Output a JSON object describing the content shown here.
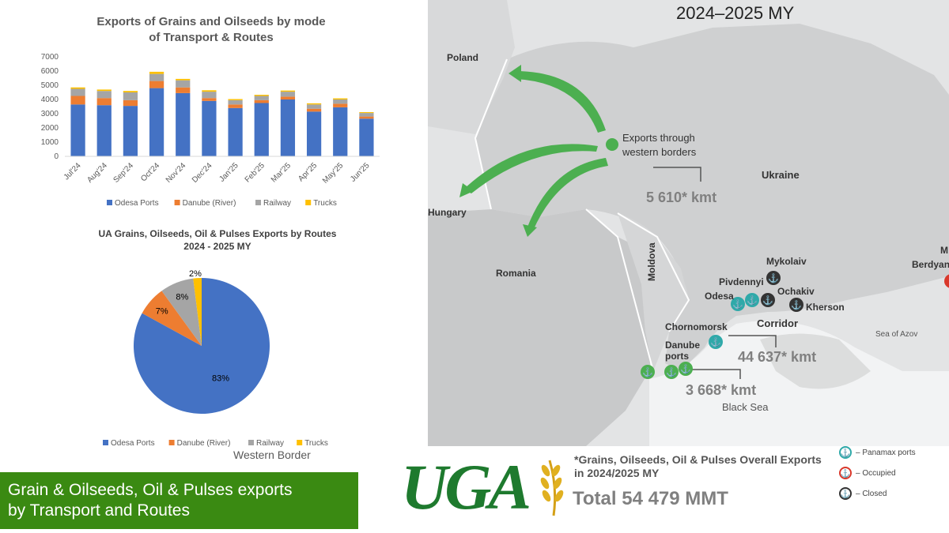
{
  "chart_data": [
    {
      "type": "bar",
      "stacked": true,
      "title": "Exports of Grains and Oilseeds by mode of Transport & Routes",
      "categories": [
        "Jul'24",
        "Aug'24",
        "Sep'24",
        "Oct'24",
        "Nov'24",
        "Dec'24",
        "Jan'25",
        "Feb'25",
        "Mar'25",
        "Apr'25",
        "May'25",
        "Jun'25"
      ],
      "series": [
        {
          "name": "Odesa Ports",
          "color": "#4472c4",
          "values": [
            3650,
            3600,
            3550,
            4800,
            4450,
            3900,
            3400,
            3750,
            4000,
            3150,
            3450,
            2650
          ]
        },
        {
          "name": "Danube (River)",
          "color": "#ed7d31",
          "values": [
            600,
            500,
            400,
            500,
            400,
            200,
            250,
            200,
            200,
            200,
            250,
            150
          ]
        },
        {
          "name": "Railway",
          "color": "#a5a5a5",
          "values": [
            500,
            500,
            550,
            500,
            500,
            450,
            300,
            300,
            350,
            300,
            300,
            250
          ]
        },
        {
          "name": "Trucks",
          "color": "#ffc000",
          "values": [
            100,
            100,
            100,
            150,
            100,
            100,
            80,
            80,
            80,
            80,
            80,
            60
          ]
        }
      ],
      "yticks": [
        "0",
        "1000",
        "2000",
        "3000",
        "4000",
        "5000",
        "6000",
        "7000"
      ],
      "ylim": [
        0,
        7000
      ],
      "legend_position": "bottom",
      "grid": false
    },
    {
      "type": "pie",
      "title": "UA Grains, Oilseeds, Oil & Pulses Exports by Routes",
      "subtitle": "2024 - 2025 MY",
      "slices": [
        {
          "name": "Odesa Ports",
          "value": 83,
          "label": "83%",
          "color": "#4472c4"
        },
        {
          "name": "Danube (River)",
          "value": 7,
          "label": "7%",
          "color": "#ed7d31"
        },
        {
          "name": "Railway",
          "value": 8,
          "label": "8%",
          "color": "#a5a5a5"
        },
        {
          "name": "Trucks",
          "value": 2,
          "label": "2%",
          "color": "#ffc000"
        }
      ],
      "legend_position": "bottom"
    }
  ],
  "western_border_caption": "Western Border",
  "banner": {
    "line1": "Grain & Oilseeds, Oil & Pulses exports",
    "line2": "by Transport and Routes"
  },
  "map": {
    "year_title": "2024–2025 MY",
    "countries": {
      "poland": "Poland",
      "hungary": "Hungary",
      "romania": "Romania",
      "moldova": "Moldova",
      "ukraine": "Ukraine"
    },
    "western_label_line1": "Exports through",
    "western_label_line2": "western borders",
    "western_volume": "5 610* kmt",
    "cities": {
      "mykolaiv": "Mykolaiv",
      "pivdennyi": "Pivdennyi",
      "odesa": "Odesa",
      "ochakiv": "Ochakiv",
      "kherson": "Kherson",
      "chornomorsk": "Chornomorsk",
      "danube_ports": "Danube\nports",
      "berdyansk": "Berdyans",
      "m_partial": "M"
    },
    "corridor_label": "Corridor",
    "corridor_volume": "44 637* kmt",
    "danube_volume": "3 668* kmt",
    "black_sea": "Black Sea",
    "sea_of_azov": "Sea of Azov"
  },
  "logo_text": "UGA",
  "overall": {
    "line1": "*Grains, Oilseeds, Oil & Pulses Overall Exports",
    "line2": "in 2024/2025 MY",
    "total": "Total 54 479 MMT"
  },
  "map_legend": [
    {
      "label": "– Panamax ports",
      "color": "#2fa9a9",
      "icon": "anchor-icon"
    },
    {
      "label": "– Occupied",
      "color": "#d9382b",
      "icon": "anchor-icon"
    },
    {
      "label": "– Closed",
      "color": "#333333",
      "icon": "anchor-icon"
    }
  ]
}
